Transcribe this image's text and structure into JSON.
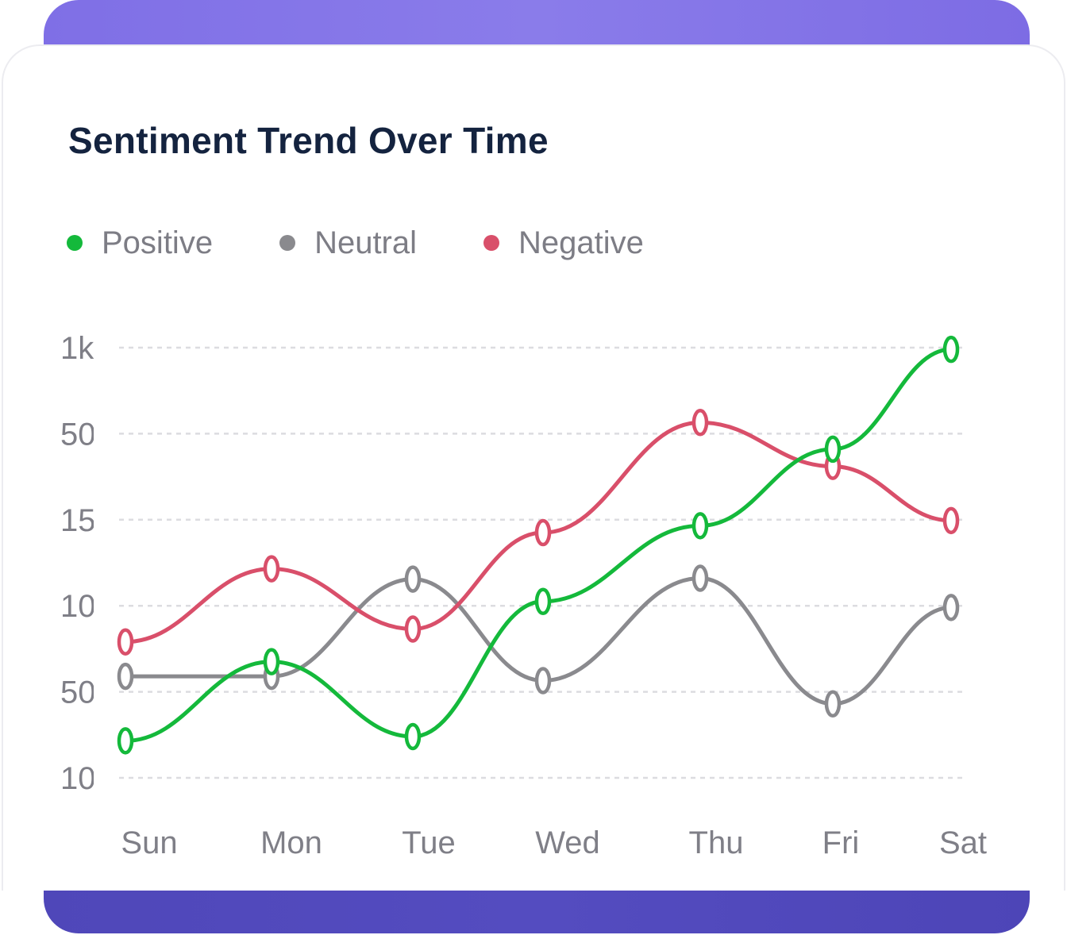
{
  "chart_data": {
    "type": "line",
    "title": "Sentiment Trend Over Time",
    "categories": [
      "Sun",
      "Mon",
      "Tue",
      "Wed",
      "Thu",
      "Fri",
      "Sat"
    ],
    "y_tick_labels": [
      "1k",
      "50",
      "15",
      "10",
      "50",
      "10"
    ],
    "grid": "horizontal dashed",
    "legend_position": "top-left",
    "series": [
      {
        "name": "Positive",
        "color": "#14b93b",
        "values": [
          0.43,
          1.35,
          0.48,
          2.05,
          2.93,
          3.82,
          4.98
        ]
      },
      {
        "name": "Neutral",
        "color": "#8a8a8e",
        "values": [
          1.18,
          1.18,
          2.31,
          1.13,
          2.32,
          0.86,
          1.98
        ]
      },
      {
        "name": "Negative",
        "color": "#d94f6a",
        "values": [
          1.58,
          2.43,
          1.73,
          2.85,
          4.13,
          3.62,
          2.99
        ]
      }
    ]
  }
}
